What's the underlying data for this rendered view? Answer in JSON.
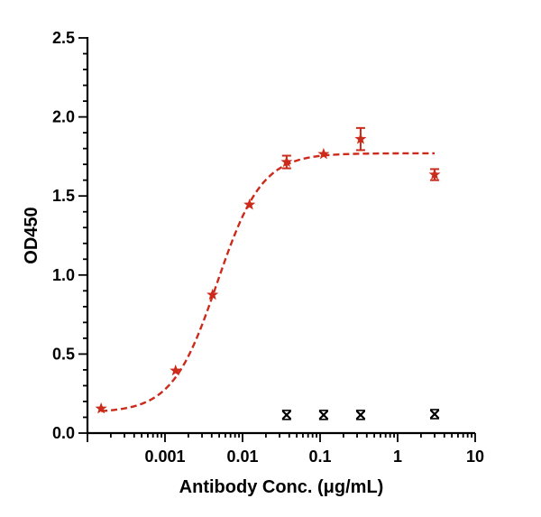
{
  "chart_data": {
    "type": "scatter",
    "title": "",
    "xlabel": "Antibody Conc. (μg/mL)",
    "ylabel": "OD450",
    "x_scale": "log",
    "xlim": [
      0.0001,
      10
    ],
    "ylim": [
      0,
      2.5
    ],
    "x_tick_values": [
      0.001,
      0.01,
      0.1,
      1,
      10
    ],
    "x_tick_labels": [
      "0.001",
      "0.01",
      "0.1",
      "1",
      "10"
    ],
    "y_tick_values": [
      0,
      0.5,
      1.0,
      1.5,
      2.0,
      2.5
    ],
    "y_tick_labels": [
      "0.0",
      "0.5",
      "1.0",
      "1.5",
      "2.0",
      "2.5"
    ],
    "grid": false,
    "colors": {
      "series_red": "#cc2a1a",
      "series_black": "#000000",
      "axis": "#000000"
    },
    "series": [
      {
        "color": "#cc2a1a",
        "marker": "star",
        "points": [
          {
            "x": 0.00015,
            "y": 0.155,
            "err": 0.0
          },
          {
            "x": 0.00137,
            "y": 0.395,
            "err": 0.0
          },
          {
            "x": 0.0041,
            "y": 0.875,
            "err": 0.0
          },
          {
            "x": 0.0123,
            "y": 1.445,
            "err": 0.0
          },
          {
            "x": 0.037,
            "y": 1.715,
            "err": 0.04
          },
          {
            "x": 0.111,
            "y": 1.765,
            "err": 0.0
          },
          {
            "x": 0.333,
            "y": 1.86,
            "err": 0.07
          },
          {
            "x": 3.0,
            "y": 1.635,
            "err": 0.035
          }
        ],
        "fit": {
          "model": "4PL",
          "bottom": 0.13,
          "top": 1.77,
          "ec50": 0.0047,
          "hill": 1.5,
          "x_range": [
            0.00015,
            3.0
          ]
        }
      },
      {
        "color": "#000000",
        "marker": "x",
        "points": [
          {
            "x": 0.037,
            "y": 0.115,
            "err": 0.0
          },
          {
            "x": 0.111,
            "y": 0.115,
            "err": 0.0
          },
          {
            "x": 0.333,
            "y": 0.115,
            "err": 0.0
          },
          {
            "x": 3.0,
            "y": 0.12,
            "err": 0.0
          }
        ]
      }
    ]
  }
}
